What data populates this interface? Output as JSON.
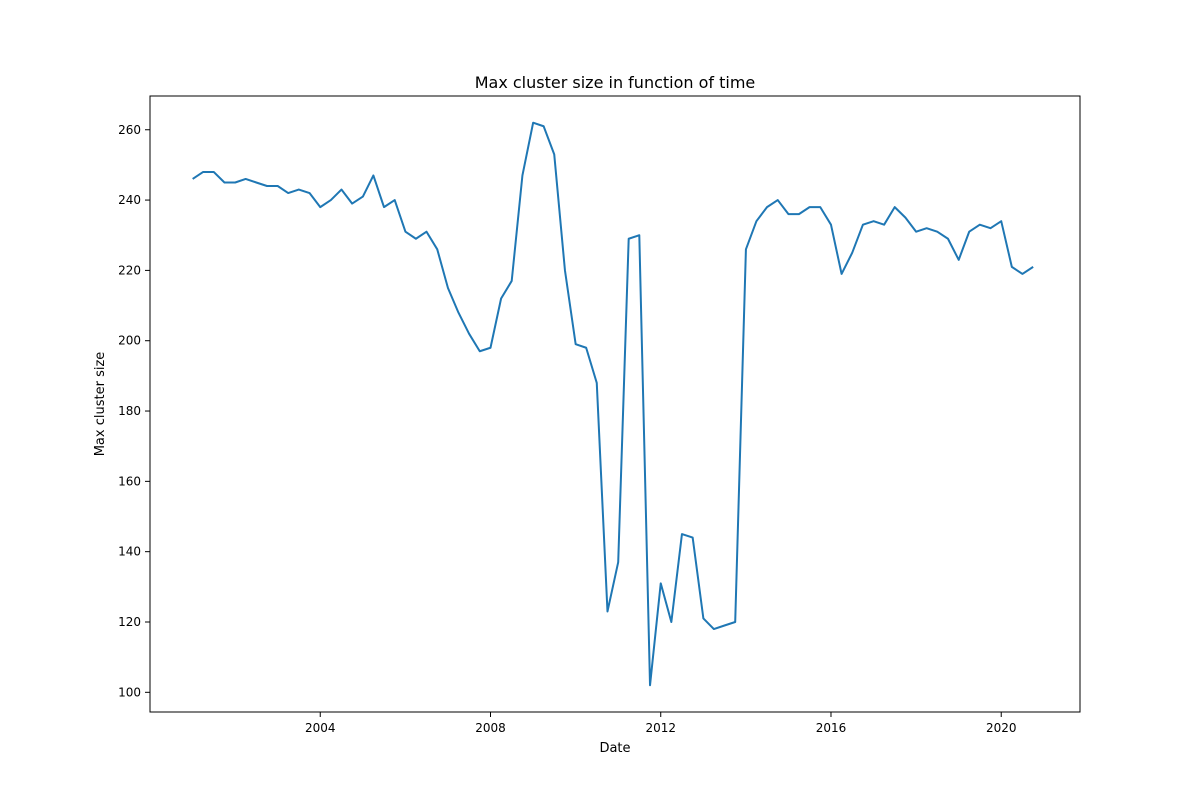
{
  "chart_data": {
    "type": "line",
    "title": "Max cluster size in function of time",
    "xlabel": "Date",
    "ylabel": "Max cluster size",
    "xlim": [
      "2000-01-01",
      "2021-11-07"
    ],
    "ylim": [
      94.4,
      269.6
    ],
    "x_ticks": [
      "2004",
      "2008",
      "2012",
      "2016",
      "2020"
    ],
    "y_ticks": [
      100,
      120,
      140,
      160,
      180,
      200,
      220,
      240,
      260
    ],
    "grid": false,
    "legend": "none",
    "series": [
      {
        "color": "#1f77b4",
        "x": [
          "2001-01-01",
          "2001-04-01",
          "2001-07-01",
          "2001-10-01",
          "2002-01-01",
          "2002-04-01",
          "2002-07-01",
          "2002-10-01",
          "2003-01-01",
          "2003-04-01",
          "2003-07-01",
          "2003-10-01",
          "2004-01-01",
          "2004-04-01",
          "2004-07-01",
          "2004-10-01",
          "2005-01-01",
          "2005-04-01",
          "2005-07-01",
          "2005-10-01",
          "2006-01-01",
          "2006-04-01",
          "2006-07-01",
          "2006-10-01",
          "2007-01-01",
          "2007-04-01",
          "2007-07-01",
          "2007-10-01",
          "2008-01-01",
          "2008-04-01",
          "2008-07-01",
          "2008-10-01",
          "2009-01-01",
          "2009-04-01",
          "2009-07-01",
          "2009-10-01",
          "2010-01-01",
          "2010-04-01",
          "2010-07-01",
          "2010-10-01",
          "2011-01-01",
          "2011-04-01",
          "2011-07-01",
          "2011-10-01",
          "2012-01-01",
          "2012-04-01",
          "2012-07-01",
          "2012-10-01",
          "2013-01-01",
          "2013-04-01",
          "2013-07-01",
          "2013-10-01",
          "2014-01-01",
          "2014-04-01",
          "2014-07-01",
          "2014-10-01",
          "2015-01-01",
          "2015-04-01",
          "2015-07-01",
          "2015-10-01",
          "2016-01-01",
          "2016-04-01",
          "2016-07-01",
          "2016-10-01",
          "2017-01-01",
          "2017-04-01",
          "2017-07-01",
          "2017-10-01",
          "2018-01-01",
          "2018-04-01",
          "2018-07-01",
          "2018-10-01",
          "2019-01-01",
          "2019-04-01",
          "2019-07-01",
          "2019-10-01",
          "2020-01-01",
          "2020-04-01",
          "2020-07-01",
          "2020-10-01"
        ],
        "y": [
          246,
          248,
          248,
          245,
          245,
          246,
          245,
          244,
          244,
          242,
          243,
          242,
          238,
          240,
          243,
          239,
          241,
          247,
          238,
          240,
          231,
          229,
          231,
          226,
          215,
          208,
          202,
          197,
          198,
          212,
          217,
          247,
          262,
          261,
          253,
          220,
          199,
          198,
          188,
          123,
          137,
          229,
          230,
          102,
          131,
          120,
          145,
          144,
          121,
          118,
          119,
          120,
          226,
          234,
          238,
          240,
          236,
          236,
          238,
          238,
          233,
          219,
          225,
          233,
          234,
          233,
          238,
          235,
          231,
          232,
          231,
          229,
          223,
          231,
          233,
          232,
          234,
          221,
          219,
          221
        ]
      }
    ]
  }
}
